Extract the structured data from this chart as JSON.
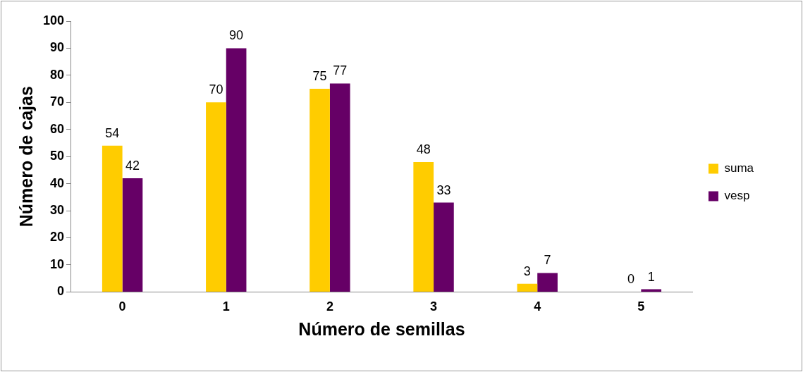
{
  "chart_data": {
    "type": "bar",
    "xlabel": "Número de semillas",
    "ylabel": "Número de cajas",
    "categories": [
      "0",
      "1",
      "2",
      "3",
      "4",
      "5"
    ],
    "series": [
      {
        "name": "suma",
        "color": "#ffcc00",
        "values": [
          54,
          70,
          75,
          48,
          3,
          0
        ]
      },
      {
        "name": "vesp",
        "color": "#660066",
        "values": [
          42,
          90,
          77,
          33,
          7,
          1
        ]
      }
    ],
    "ylim": [
      0,
      100
    ],
    "yticks": [
      0,
      10,
      20,
      30,
      40,
      50,
      60,
      70,
      80,
      90,
      100
    ],
    "grid": false,
    "legend": "right",
    "data_labels": true
  }
}
